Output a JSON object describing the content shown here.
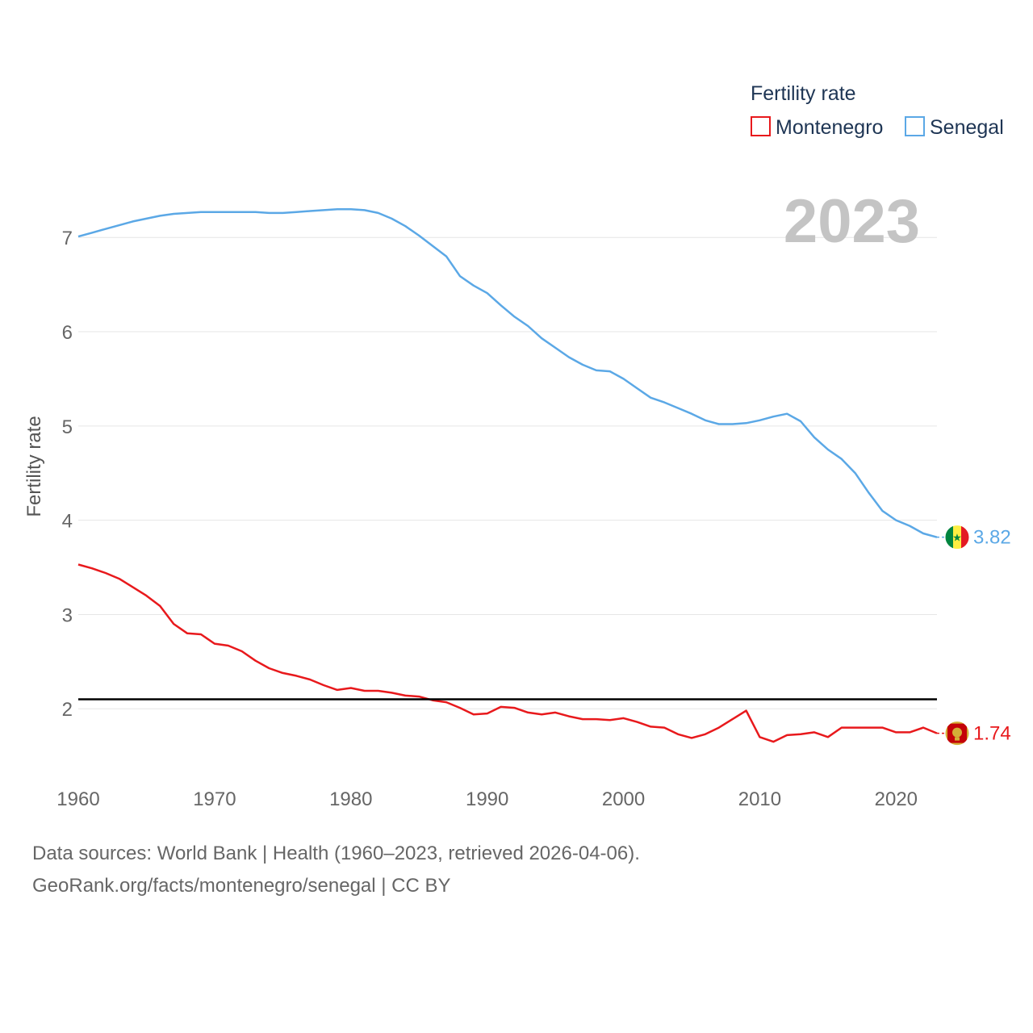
{
  "chart_data": {
    "type": "line",
    "title": "",
    "xlabel": "",
    "ylabel": "Fertility rate",
    "xlim": [
      1960,
      2023
    ],
    "ylim": [
      1.3,
      7.55
    ],
    "yticks": [
      2,
      3,
      4,
      5,
      6,
      7
    ],
    "xticks": [
      1960,
      1970,
      1980,
      1990,
      2000,
      2010,
      2020
    ],
    "grid": true,
    "year_label": "2023",
    "legend": {
      "title": "Fertility rate",
      "position": "top-right"
    },
    "reference_line": {
      "y": 2.1,
      "color": "#000000"
    },
    "x": [
      1960,
      1961,
      1962,
      1963,
      1964,
      1965,
      1966,
      1967,
      1968,
      1969,
      1970,
      1971,
      1972,
      1973,
      1974,
      1975,
      1976,
      1977,
      1978,
      1979,
      1980,
      1981,
      1982,
      1983,
      1984,
      1985,
      1986,
      1987,
      1988,
      1989,
      1990,
      1991,
      1992,
      1993,
      1994,
      1995,
      1996,
      1997,
      1998,
      1999,
      2000,
      2001,
      2002,
      2003,
      2004,
      2005,
      2006,
      2007,
      2008,
      2009,
      2010,
      2011,
      2012,
      2013,
      2014,
      2015,
      2016,
      2017,
      2018,
      2019,
      2020,
      2021,
      2022,
      2023
    ],
    "series": [
      {
        "name": "Montenegro",
        "color": "#e8191c",
        "end_label": "1.74",
        "flag": "montenegro-flag-icon",
        "values": [
          3.53,
          3.49,
          3.44,
          3.38,
          3.29,
          3.2,
          3.09,
          2.9,
          2.8,
          2.79,
          2.69,
          2.67,
          2.61,
          2.51,
          2.43,
          2.38,
          2.35,
          2.31,
          2.25,
          2.2,
          2.22,
          2.19,
          2.19,
          2.17,
          2.14,
          2.13,
          2.09,
          2.07,
          2.01,
          1.94,
          1.95,
          2.02,
          2.01,
          1.96,
          1.94,
          1.96,
          1.92,
          1.89,
          1.89,
          1.88,
          1.9,
          1.86,
          1.81,
          1.8,
          1.73,
          1.69,
          1.73,
          1.8,
          1.89,
          1.98,
          1.7,
          1.65,
          1.72,
          1.73,
          1.75,
          1.7,
          1.8,
          1.8,
          1.8,
          1.8,
          1.75,
          1.75,
          1.8,
          1.74
        ]
      },
      {
        "name": "Senegal",
        "color": "#5ba8e6",
        "end_label": "3.82",
        "flag": "senegal-flag-icon",
        "values": [
          7.01,
          7.05,
          7.09,
          7.13,
          7.17,
          7.2,
          7.23,
          7.25,
          7.26,
          7.27,
          7.27,
          7.27,
          7.27,
          7.27,
          7.26,
          7.26,
          7.27,
          7.28,
          7.29,
          7.3,
          7.3,
          7.29,
          7.26,
          7.2,
          7.12,
          7.02,
          6.91,
          6.8,
          6.59,
          6.49,
          6.41,
          6.28,
          6.16,
          6.06,
          5.93,
          5.83,
          5.73,
          5.65,
          5.59,
          5.58,
          5.5,
          5.4,
          5.3,
          5.25,
          5.19,
          5.13,
          5.06,
          5.02,
          5.02,
          5.03,
          5.06,
          5.1,
          5.13,
          5.05,
          4.88,
          4.75,
          4.65,
          4.5,
          4.29,
          4.1,
          4.0,
          3.94,
          3.86,
          3.82
        ]
      }
    ]
  },
  "footer": {
    "line1": "Data sources: World Bank | Health (1960–2023, retrieved 2026-04-06).",
    "line2": "GeoRank.org/facts/montenegro/senegal | CC BY"
  }
}
